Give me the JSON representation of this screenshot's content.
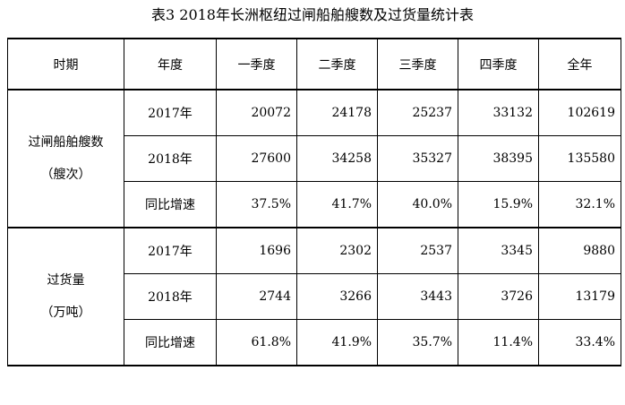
{
  "title": "表3  2018年长洲枢纽过闸船舶艘数及过货量统计表",
  "headers": {
    "period": "时期",
    "year": "年度",
    "q1": "一季度",
    "q2": "二季度",
    "q3": "三季度",
    "q4": "四季度",
    "full": "全年"
  },
  "groups": [
    {
      "name_line1": "过闸船舶艘数",
      "name_line2": "（艘次）",
      "rows": [
        {
          "label": "2017年",
          "q1": "20072",
          "q2": "24178",
          "q3": "25237",
          "q4": "33132",
          "full": "102619"
        },
        {
          "label": "2018年",
          "q1": "27600",
          "q2": "34258",
          "q3": "35327",
          "q4": "38395",
          "full": "135580"
        },
        {
          "label": "同比增速",
          "q1": "37.5%",
          "q2": "41.7%",
          "q3": "40.0%",
          "q4": "15.9%",
          "full": "32.1%"
        }
      ]
    },
    {
      "name_line1": "过货量",
      "name_line2": "（万吨）",
      "rows": [
        {
          "label": "2017年",
          "q1": "1696",
          "q2": "2302",
          "q3": "2537",
          "q4": "3345",
          "full": "9880"
        },
        {
          "label": "2018年",
          "q1": "2744",
          "q2": "3266",
          "q3": "3443",
          "q4": "3726",
          "full": "13179"
        },
        {
          "label": "同比增速",
          "q1": "61.8%",
          "q2": "41.9%",
          "q3": "35.7%",
          "q4": "11.4%",
          "full": "33.4%"
        }
      ]
    }
  ]
}
